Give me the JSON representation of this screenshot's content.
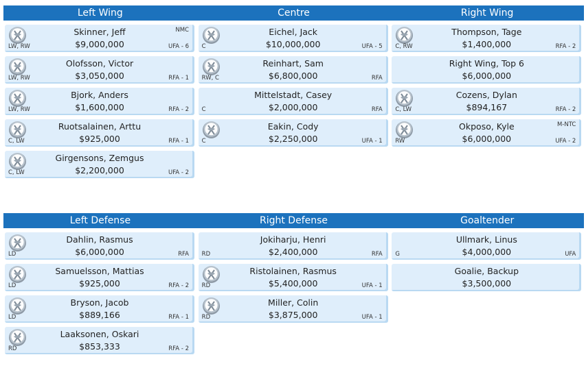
{
  "forwards": {
    "headers": [
      "Left Wing",
      "Centre",
      "Right Wing"
    ],
    "columns": [
      [
        {
          "name": "Skinner, Jeff",
          "salary": "$9,000,000",
          "pos": "LW, RW",
          "status": "UFA - 6",
          "clause": "NMC",
          "icon": "sabres-logo-icon"
        },
        {
          "name": "Olofsson, Victor",
          "salary": "$3,050,000",
          "pos": "LW, RW",
          "status": "RFA - 1",
          "clause": "",
          "icon": "sabres-logo-icon"
        },
        {
          "name": "Bjork, Anders",
          "salary": "$1,600,000",
          "pos": "LW, RW",
          "status": "RFA - 2",
          "clause": "",
          "icon": "sabres-logo-icon"
        },
        {
          "name": "Ruotsalainen, Arttu",
          "salary": "$925,000",
          "pos": "C, LW",
          "status": "RFA - 1",
          "clause": "",
          "icon": "sabres-logo-icon"
        },
        {
          "name": "Girgensons, Zemgus",
          "salary": "$2,200,000",
          "pos": "C, LW",
          "status": "UFA - 2",
          "clause": "",
          "icon": "sabres-logo-icon"
        }
      ],
      [
        {
          "name": "Eichel, Jack",
          "salary": "$10,000,000",
          "pos": "C",
          "status": "UFA - 5",
          "clause": "",
          "icon": "sabres-logo-icon"
        },
        {
          "name": "Reinhart, Sam",
          "salary": "$6,800,000",
          "pos": "RW, C",
          "status": "RFA",
          "clause": "",
          "icon": "sabres-logo-icon"
        },
        {
          "name": "Mittelstadt, Casey",
          "salary": "$2,000,000",
          "pos": "C",
          "status": "RFA",
          "clause": "",
          "icon": ""
        },
        {
          "name": "Eakin, Cody",
          "salary": "$2,250,000",
          "pos": "C",
          "status": "UFA - 1",
          "clause": "",
          "icon": "sabres-logo-icon"
        }
      ],
      [
        {
          "name": "Thompson, Tage",
          "salary": "$1,400,000",
          "pos": "C, RW",
          "status": "RFA - 2",
          "clause": "",
          "icon": "sabres-logo-icon"
        },
        {
          "name": "Right Wing, Top 6",
          "salary": "$6,000,000",
          "pos": "",
          "status": "",
          "clause": "",
          "icon": ""
        },
        {
          "name": "Cozens, Dylan",
          "salary": "$894,167",
          "pos": "C, LW",
          "status": "RFA - 2",
          "clause": "",
          "icon": "sabres-logo-icon"
        },
        {
          "name": "Okposo, Kyle",
          "salary": "$6,000,000",
          "pos": "RW",
          "status": "UFA - 2",
          "clause": "M-NTC",
          "icon": "sabres-logo-icon"
        }
      ]
    ]
  },
  "defense": {
    "headers": [
      "Left Defense",
      "Right Defense",
      "Goaltender"
    ],
    "columns": [
      [
        {
          "name": "Dahlin, Rasmus",
          "salary": "$6,000,000",
          "pos": "LD",
          "status": "RFA",
          "clause": "",
          "icon": "sabres-logo-icon"
        },
        {
          "name": "Samuelsson, Mattias",
          "salary": "$925,000",
          "pos": "LD",
          "status": "RFA - 2",
          "clause": "",
          "icon": "sabres-logo-icon"
        },
        {
          "name": "Bryson, Jacob",
          "salary": "$889,166",
          "pos": "LD",
          "status": "RFA - 1",
          "clause": "",
          "icon": "sabres-logo-icon"
        },
        {
          "name": "Laaksonen, Oskari",
          "salary": "$853,333",
          "pos": "RD",
          "status": "RFA - 2",
          "clause": "",
          "icon": "sabres-logo-icon"
        }
      ],
      [
        {
          "name": "Jokiharju, Henri",
          "salary": "$2,400,000",
          "pos": "RD",
          "status": "RFA",
          "clause": "",
          "icon": ""
        },
        {
          "name": "Ristolainen, Rasmus",
          "salary": "$5,400,000",
          "pos": "RD",
          "status": "UFA - 1",
          "clause": "",
          "icon": "sabres-logo-icon"
        },
        {
          "name": "Miller, Colin",
          "salary": "$3,875,000",
          "pos": "RD",
          "status": "UFA - 1",
          "clause": "",
          "icon": "sabres-logo-icon"
        }
      ],
      [
        {
          "name": "Ullmark, Linus",
          "salary": "$4,000,000",
          "pos": "G",
          "status": "UFA",
          "clause": "",
          "icon": ""
        },
        {
          "name": "Goalie, Backup",
          "salary": "$3,500,000",
          "pos": "",
          "status": "",
          "clause": "",
          "icon": ""
        }
      ]
    ]
  },
  "colors": {
    "header_bg": "#1c72bd",
    "card_bg": "#dfeefb",
    "card_edge": "#b9d9f2"
  }
}
